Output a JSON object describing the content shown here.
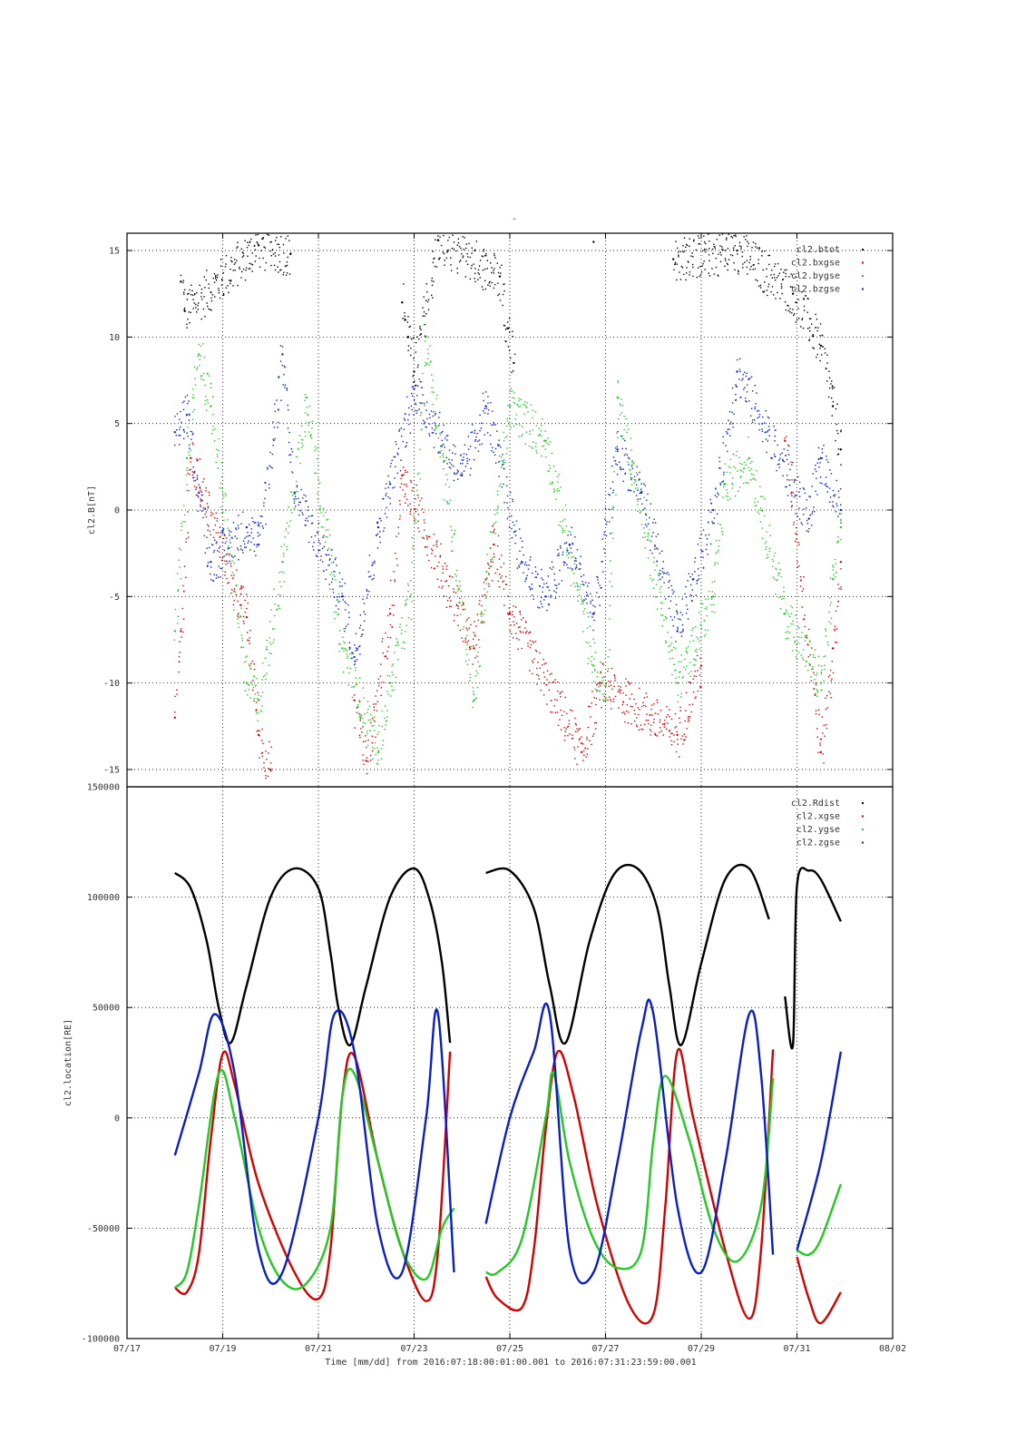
{
  "figure": {
    "title": "-",
    "xlabel": "Time [mm/dd]  from 2016:07:18:00:01:00.001  to  2016:07:31:23:59:00.001"
  },
  "colors": {
    "black": "#000000",
    "red": "#d40000",
    "green": "#22c922",
    "blue": "#0a1ec8"
  },
  "chart_data": [
    {
      "type": "scatter",
      "ylabel": "cl2.B[nT]",
      "xlim": [
        "07/17",
        "08/02"
      ],
      "ylim": [
        -16,
        16
      ],
      "yticks": [
        -15,
        -10,
        -5,
        0,
        5,
        10,
        15
      ],
      "xticks": [],
      "grid": true,
      "legend_position": "top-right",
      "series": [
        {
          "name": "cl2.btot",
          "color": "#000000",
          "points": [
            [
              "07/18 03:00",
              13.2
            ],
            [
              "07/18 05:00",
              11.5
            ],
            [
              "07/19 18:00",
              15.3
            ],
            [
              "07/20 10:00",
              14.8
            ],
            [
              "07/22 18:00",
              12.0
            ],
            [
              "07/22 21:00",
              10.0
            ],
            [
              "07/23 00:00",
              8.0
            ],
            [
              "07/23 12:00",
              15.6
            ],
            [
              "07/24 19:00",
              13.5
            ],
            [
              "07/24 23:00",
              10.5
            ],
            [
              "07/25 02:00",
              8.5
            ],
            [
              "07/26 18:00",
              15.5
            ],
            [
              "07/28 10:00",
              14.5
            ],
            [
              "07/29 18:00",
              15.0
            ],
            [
              "07/30 22:00",
              12.5
            ],
            [
              "07/31 12:00",
              9.5
            ],
            [
              "07/31 18:00",
              6.0
            ],
            [
              "07/31 22:00",
              3.5
            ]
          ]
        },
        {
          "name": "cl2.bxgse",
          "color": "#d40000",
          "points": [
            [
              "07/18 00:00",
              -12.0
            ],
            [
              "07/18 03:00",
              -7.0
            ],
            [
              "07/18 08:00",
              3.0
            ],
            [
              "07/19 09:00",
              -5.5
            ],
            [
              "07/19 12:00",
              -6.2
            ],
            [
              "07/19 18:00",
              -13.0
            ],
            [
              "07/20 00:00",
              -15.0
            ],
            [
              "07/21 18:00",
              -11.0
            ],
            [
              "07/22 00:00",
              -14.5
            ],
            [
              "07/22 12:00",
              -6.0
            ],
            [
              "07/22 18:00",
              2.0
            ],
            [
              "07/24 06:00",
              -8.0
            ],
            [
              "07/24 16:00",
              -2.0
            ],
            [
              "07/25 00:00",
              -6.0
            ],
            [
              "07/26 12:00",
              -14.0
            ],
            [
              "07/26 22:00",
              -10.0
            ],
            [
              "07/28 12:00",
              -13.0
            ],
            [
              "07/29 00:00",
              -9.0
            ],
            [
              "07/30 18:00",
              4.0
            ],
            [
              "07/31 12:00",
              -14.0
            ],
            [
              "07/31 18:00",
              -8.0
            ],
            [
              "07/31 22:00",
              -3.0
            ]
          ]
        },
        {
          "name": "cl2.bygse",
          "color": "#22c922",
          "points": [
            [
              "07/18 00:00",
              -7.0
            ],
            [
              "07/18 06:00",
              3.0
            ],
            [
              "07/18 12:00",
              9.0
            ],
            [
              "07/18 18:00",
              6.0
            ],
            [
              "07/19 12:00",
              -10.0
            ],
            [
              "07/19 18:00",
              -11.0
            ],
            [
              "07/20 06:00",
              -3.0
            ],
            [
              "07/20 18:00",
              6.5
            ],
            [
              "07/21 12:00",
              -8.0
            ],
            [
              "07/22 06:00",
              -14.0
            ],
            [
              "07/22 12:00",
              -10.0
            ],
            [
              "07/22 22:00",
              -5.0
            ],
            [
              "07/23 06:00",
              10.0
            ],
            [
              "07/24 06:00",
              -11.0
            ],
            [
              "07/24 12:00",
              -4.0
            ],
            [
              "07/25 00:00",
              6.0
            ],
            [
              "07/25 18:00",
              4.0
            ],
            [
              "07/26 18:00",
              -9.0
            ],
            [
              "07/27 00:00",
              -11.0
            ],
            [
              "07/27 06:00",
              6.5
            ],
            [
              "07/28 12:00",
              -10.0
            ],
            [
              "07/29 06:00",
              -5.0
            ],
            [
              "07/29 12:00",
              1.5
            ],
            [
              "07/30 00:00",
              3.0
            ],
            [
              "07/30 18:00",
              -6.0
            ],
            [
              "07/31 12:00",
              -10.0
            ],
            [
              "07/31 18:00",
              -4.0
            ],
            [
              "07/31 22:00",
              -1.0
            ]
          ]
        },
        {
          "name": "cl2.bzgse",
          "color": "#0a1ec8",
          "points": [
            [
              "07/18 00:00",
              4.5
            ],
            [
              "07/18 06:00",
              5.5
            ],
            [
              "07/18 12:00",
              1.0
            ],
            [
              "07/18 18:00",
              -3.0
            ],
            [
              "07/19 12:00",
              -1.0
            ],
            [
              "07/19 18:00",
              -2.0
            ],
            [
              "07/20 06:00",
              9.0
            ],
            [
              "07/20 12:00",
              1.0
            ],
            [
              "07/21 12:00",
              -5.0
            ],
            [
              "07/21 18:00",
              -8.5
            ],
            [
              "07/22 06:00",
              -1.0
            ],
            [
              "07/22 12:00",
              1.5
            ],
            [
              "07/23 00:00",
              7.0
            ],
            [
              "07/24 00:00",
              2.0
            ],
            [
              "07/24 12:00",
              6.0
            ],
            [
              "07/25 06:00",
              -3.0
            ],
            [
              "07/25 18:00",
              -5.0
            ],
            [
              "07/26 06:00",
              -2.0
            ],
            [
              "07/26 18:00",
              -6.0
            ],
            [
              "07/27 06:00",
              3.5
            ],
            [
              "07/27 18:00",
              1.0
            ],
            [
              "07/28 12:00",
              -7.0
            ],
            [
              "07/28 20:00",
              -4.0
            ],
            [
              "07/29 06:00",
              0.0
            ],
            [
              "07/29 18:00",
              8.0
            ],
            [
              "07/31 06:00",
              -0.5
            ],
            [
              "07/31 12:00",
              3.0
            ],
            [
              "07/31 22:00",
              0.0
            ]
          ]
        }
      ]
    },
    {
      "type": "line",
      "ylabel": "cl2.location[RE]",
      "xlabel": "Time [mm/dd]  from 2016:07:18:00:01:00.001  to  2016:07:31:23:59:00.001",
      "xlim": [
        "07/17",
        "08/02"
      ],
      "ylim": [
        -100000,
        150000
      ],
      "yticks": [
        -100000,
        -50000,
        0,
        50000,
        100000,
        150000
      ],
      "xticks": [
        "07/17",
        "07/19",
        "07/21",
        "07/23",
        "07/25",
        "07/27",
        "07/29",
        "07/31",
        "08/02"
      ],
      "grid": true,
      "legend_position": "top-right",
      "data_gaps": [
        [
          "07/23 20:00",
          "07/24 12:00"
        ],
        [
          "07/30 12:00",
          "07/31 00:00"
        ]
      ],
      "x_days": [
        [
          0.0,
          0.0
        ],
        [
          0.0,
          0.0
        ],
        [
          0.0,
          0.0
        ],
        [
          0.0,
          0.0
        ]
      ],
      "series": [
        {
          "name": "cl2.Rdist",
          "color": "#000000",
          "x": [
            "07/18 00:00",
            "07/18 08:00",
            "07/18 16:00",
            "07/18 22:00",
            "07/19 04:00",
            "07/19 12:00",
            "07/20 00:00",
            "07/20 12:00",
            "07/21 00:00",
            "07/21 06:00",
            "07/21 10:00",
            "07/21 16:00",
            "07/22 00:00",
            "07/22 12:00",
            "07/23 00:00",
            "07/23 08:00",
            "07/23 14:00",
            "07/23 18:00",
            "07/24 12:00",
            "07/25 00:00",
            "07/25 12:00",
            "07/25 20:00",
            "07/26 04:00",
            "07/26 16:00",
            "07/27 04:00",
            "07/27 16:00",
            "07/28 02:00",
            "07/28 08:00",
            "07/28 14:00",
            "07/29 00:00",
            "07/29 12:00",
            "07/30 00:00",
            "07/30 10:00",
            "07/30 18:00",
            "07/30 22:00",
            "07/31 00:00",
            "07/31 06:00",
            "07/31 12:00",
            "07/31 22:00"
          ],
          "values": [
            111000,
            104000,
            80000,
            50000,
            34000,
            60000,
            100000,
            113000,
            104000,
            75000,
            50000,
            33000,
            60000,
            100000,
            113000,
            98000,
            70000,
            34000,
            111000,
            112000,
            95000,
            60000,
            34000,
            80000,
            110000,
            113000,
            95000,
            60000,
            33000,
            70000,
            108000,
            113000,
            90000,
            55000,
            33000,
            105000,
            112000,
            108000,
            89000
          ]
        },
        {
          "name": "cl2.xgse",
          "color": "#d40000",
          "x": [
            "07/18 00:00",
            "07/18 06:00",
            "07/18 12:00",
            "07/18 18:00",
            "07/19 00:00",
            "07/19 06:00",
            "07/19 18:00",
            "07/20 12:00",
            "07/21 00:00",
            "07/21 06:00",
            "07/21 12:00",
            "07/21 18:00",
            "07/22 06:00",
            "07/22 18:00",
            "07/23 06:00",
            "07/23 12:00",
            "07/23 18:00",
            "07/24 12:00",
            "07/24 18:00",
            "07/25 06:00",
            "07/25 12:00",
            "07/25 18:00",
            "07/26 00:00",
            "07/26 08:00",
            "07/26 20:00",
            "07/27 12:00",
            "07/28 00:00",
            "07/28 06:00",
            "07/28 12:00",
            "07/28 20:00",
            "07/29 12:00",
            "07/30 00:00",
            "07/30 06:00",
            "07/30 12:00",
            "07/31 00:00",
            "07/31 06:00",
            "07/31 12:00",
            "07/31 22:00"
          ],
          "values": [
            -77000,
            -79000,
            -62000,
            -10000,
            29000,
            15000,
            -30000,
            -70000,
            -82000,
            -60000,
            10000,
            28000,
            -20000,
            -60000,
            -83000,
            -60000,
            30000,
            -72000,
            -82000,
            -86000,
            -60000,
            -5000,
            30000,
            10000,
            -40000,
            -85000,
            -89000,
            -40000,
            30000,
            0,
            -60000,
            -91000,
            -60000,
            31000,
            -63000,
            -82000,
            -93000,
            -79000
          ]
        },
        {
          "name": "cl2.ygse",
          "color": "#22c922",
          "x": [
            "07/18 00:00",
            "07/18 06:00",
            "07/18 12:00",
            "07/18 22:00",
            "07/19 06:00",
            "07/19 18:00",
            "07/20 06:00",
            "07/20 18:00",
            "07/21 06:00",
            "07/21 12:00",
            "07/21 18:00",
            "07/22 06:00",
            "07/22 18:00",
            "07/23 06:00",
            "07/23 14:00",
            "07/23 20:00",
            "07/24 12:00",
            "07/24 18:00",
            "07/25 06:00",
            "07/25 18:00",
            "07/25 22:00",
            "07/26 06:00",
            "07/26 18:00",
            "07/27 06:00",
            "07/27 18:00",
            "07/28 00:00",
            "07/28 06:00",
            "07/28 18:00",
            "07/29 06:00",
            "07/29 18:00",
            "07/30 06:00",
            "07/30 12:00",
            "07/31 00:00",
            "07/31 06:00",
            "07/31 12:00",
            "07/31 22:00"
          ],
          "values": [
            -77000,
            -70000,
            -40000,
            20000,
            0,
            -50000,
            -74000,
            -75000,
            -50000,
            10000,
            20000,
            -20000,
            -60000,
            -73000,
            -50000,
            -41000,
            -70000,
            -70000,
            -55000,
            0,
            20000,
            -20000,
            -55000,
            -68000,
            -60000,
            -10000,
            19000,
            -10000,
            -50000,
            -65000,
            -40000,
            18000,
            -60000,
            -62000,
            -55000,
            -30000
          ]
        },
        {
          "name": "cl2.zgse",
          "color": "#0a1ec8",
          "x": [
            "07/18 00:00",
            "07/18 12:00",
            "07/18 20:00",
            "07/19 06:00",
            "07/19 18:00",
            "07/20 06:00",
            "07/21 00:00",
            "07/21 08:00",
            "07/21 18:00",
            "07/22 06:00",
            "07/22 18:00",
            "07/23 06:00",
            "07/23 12:00",
            "07/23 20:00",
            "07/24 12:00",
            "07/25 00:00",
            "07/25 12:00",
            "07/25 20:00",
            "07/26 06:00",
            "07/26 18:00",
            "07/27 06:00",
            "07/27 18:00",
            "07/28 00:00",
            "07/28 12:00",
            "07/29 00:00",
            "07/29 12:00",
            "07/30 00:00",
            "07/30 06:00",
            "07/30 12:00",
            "07/31 00:00",
            "07/31 12:00",
            "07/31 22:00"
          ],
          "values": [
            -17000,
            20000,
            47000,
            20000,
            -60000,
            -70000,
            0,
            47000,
            30000,
            -50000,
            -70000,
            0,
            47000,
            -70000,
            -48000,
            0,
            30000,
            47000,
            -60000,
            -70000,
            -20000,
            40000,
            47000,
            -40000,
            -70000,
            -20000,
            47000,
            20000,
            -62000,
            -60000,
            -20000,
            30000
          ]
        }
      ]
    }
  ]
}
